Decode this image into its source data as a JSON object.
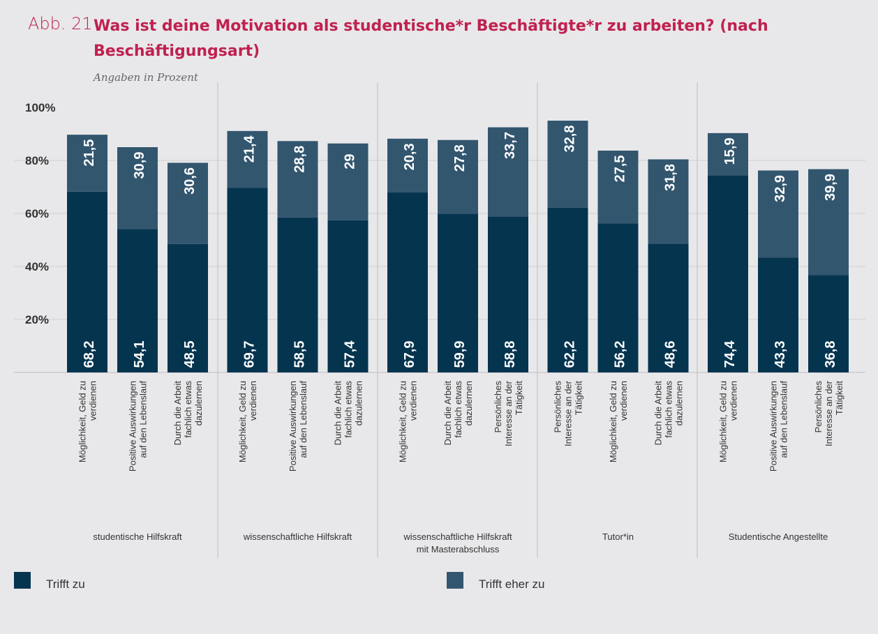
{
  "header": {
    "figure_label": "Abb. 21",
    "title": "Was ist deine Motivation als studentische*r Beschäftigte*r zu arbeiten? (nach Beschäftigungsart)",
    "subtitle": "Angaben in Prozent"
  },
  "colors": {
    "background": "#e8e8ea",
    "trifft_zu": "#05344f",
    "trifft_eher_zu": "#33566f",
    "title": "#c0214f",
    "grid": "#cfcfd3"
  },
  "legend": [
    {
      "label": "Trifft zu",
      "color": "#05344f"
    },
    {
      "label": "Trifft eher zu",
      "color": "#33566f"
    }
  ],
  "chart_data": {
    "type": "bar",
    "stacked": true,
    "ylim": [
      0,
      100
    ],
    "yticks": [
      20,
      40,
      60,
      80,
      100
    ],
    "ytick_labels": [
      "20%",
      "40%",
      "60%",
      "80%",
      "100%"
    ],
    "grid": true,
    "series_names": [
      "Trifft zu",
      "Trifft eher zu"
    ],
    "groups": [
      {
        "name": "studentische Hilfskraft",
        "bars": [
          {
            "label": "Möglichkeit, Geld zu verdienen",
            "values": [
              68.2,
              21.5
            ],
            "labels": [
              "68,2",
              "21,5"
            ]
          },
          {
            "label": "Positive Auswirkungen auf den Lebenslauf",
            "values": [
              54.1,
              30.9
            ],
            "labels": [
              "54,1",
              "30,9"
            ]
          },
          {
            "label": "Durch die Arbeit fachlich etwas dazulernen",
            "values": [
              48.5,
              30.6
            ],
            "labels": [
              "48,5",
              "30,6"
            ]
          }
        ]
      },
      {
        "name": "wissenschaftliche Hilfskraft",
        "bars": [
          {
            "label": "Möglichkeit, Geld zu verdienen",
            "values": [
              69.7,
              21.4
            ],
            "labels": [
              "69,7",
              "21,4"
            ]
          },
          {
            "label": "Positive Auswirkungen auf den Lebenslauf",
            "values": [
              58.5,
              28.8
            ],
            "labels": [
              "58,5",
              "28,8"
            ]
          },
          {
            "label": "Durch die Arbeit fachlich etwas dazulernen",
            "values": [
              57.4,
              29
            ],
            "labels": [
              "57,4",
              "29"
            ]
          }
        ]
      },
      {
        "name": "wissenschaftliche Hilfskraft mit Masterabschluss",
        "bars": [
          {
            "label": "Möglichkeit, Geld zu verdienen",
            "values": [
              67.9,
              20.3
            ],
            "labels": [
              "67,9",
              "20,3"
            ]
          },
          {
            "label": "Durch die Arbeit fachlich etwas dazulernen",
            "values": [
              59.9,
              27.8
            ],
            "labels": [
              "59,9",
              "27,8"
            ]
          },
          {
            "label": "Persönliches Interesse an der Tätigkeit",
            "values": [
              58.8,
              33.7
            ],
            "labels": [
              "58,8",
              "33,7"
            ]
          }
        ]
      },
      {
        "name": "Tutor*in",
        "bars": [
          {
            "label": "Persönliches Interesse an der Tätigkeit",
            "values": [
              62.2,
              32.8
            ],
            "labels": [
              "62,2",
              "32,8"
            ]
          },
          {
            "label": "Möglichkeit, Geld zu verdienen",
            "values": [
              56.2,
              27.5
            ],
            "labels": [
              "56,2",
              "27,5"
            ]
          },
          {
            "label": "Durch die Arbeit fachlich etwas dazulernen",
            "values": [
              48.6,
              31.8
            ],
            "labels": [
              "48,6",
              "31,8"
            ]
          }
        ]
      },
      {
        "name": "Studentische Angestellte",
        "bars": [
          {
            "label": "Möglichkeit, Geld zu verdienen",
            "values": [
              74.4,
              15.9
            ],
            "labels": [
              "74,4",
              "15,9"
            ]
          },
          {
            "label": "Positive Auswirkungen auf den Lebenslauf",
            "values": [
              43.3,
              32.9
            ],
            "labels": [
              "43,3",
              "32,9"
            ]
          },
          {
            "label": "Persönliches Interesse an der Tätigkeit",
            "values": [
              36.8,
              39.9
            ],
            "labels": [
              "36,8",
              "39,9"
            ]
          }
        ]
      }
    ]
  }
}
